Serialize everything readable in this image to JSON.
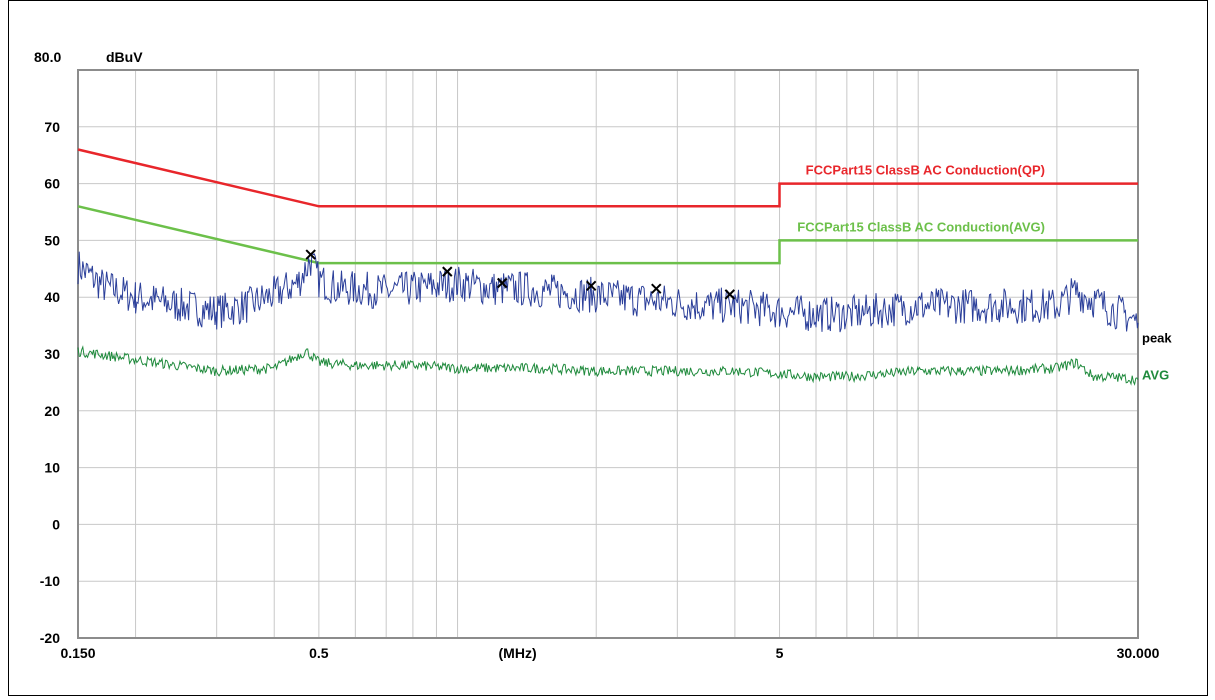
{
  "chart_data": {
    "type": "line",
    "title": "",
    "y_top_label": "80.0",
    "ylabel": "dBuV",
    "xlabel": "(MHz)",
    "x_scale": "log",
    "xlim": [
      0.15,
      30
    ],
    "ylim": [
      -20,
      80
    ],
    "x_tick_labels": [
      {
        "value": 0.15,
        "label": "0.150"
      },
      {
        "value": 0.5,
        "label": "0.5"
      },
      {
        "value": 1.35,
        "label": "(MHz)"
      },
      {
        "value": 5,
        "label": "5"
      },
      {
        "value": 30,
        "label": "30.000"
      }
    ],
    "y_ticks": [
      70,
      60,
      50,
      40,
      30,
      20,
      10,
      0,
      -10,
      -20
    ],
    "series": [
      {
        "name": "FCCPart15 ClassB AC Conduction(QP)",
        "color": "#e8262b",
        "x": [
          0.15,
          0.5,
          0.5,
          5,
          5,
          30
        ],
        "y": [
          66,
          56,
          56,
          56,
          60,
          60
        ]
      },
      {
        "name": "FCCPart15 ClassB AC Conduction(AVG)",
        "color": "#6cc04a",
        "x": [
          0.15,
          0.5,
          0.5,
          5,
          5,
          30
        ],
        "y": [
          56,
          46,
          46,
          46,
          50,
          50
        ]
      },
      {
        "name": "peak",
        "color": "#2b3f9a",
        "x": [
          0.15,
          0.17,
          0.2,
          0.25,
          0.3,
          0.35,
          0.4,
          0.45,
          0.48,
          0.5,
          0.55,
          0.6,
          0.7,
          0.8,
          0.9,
          1.0,
          1.2,
          1.4,
          1.6,
          1.9,
          2.2,
          2.6,
          3.0,
          3.5,
          4.0,
          4.5,
          5.0,
          6.0,
          7.0,
          8.0,
          10.0,
          12.0,
          15.0,
          18.0,
          20.0,
          22.0,
          24.0,
          26.0,
          28.0,
          30.0
        ],
        "y": [
          45.5,
          42,
          40,
          38.5,
          37.5,
          38.5,
          40.5,
          42.5,
          46.5,
          43,
          41.5,
          41.5,
          41,
          41.5,
          42,
          42.5,
          41.5,
          41.5,
          41,
          40.5,
          40,
          39.5,
          39,
          38.5,
          38.5,
          38,
          37.5,
          37,
          37,
          37.5,
          38.5,
          38.5,
          38.5,
          38.5,
          38.5,
          41,
          39.5,
          38,
          37,
          35.5
        ]
      },
      {
        "name": "AVG",
        "color": "#1f8a3c",
        "x": [
          0.15,
          0.2,
          0.3,
          0.4,
          0.47,
          0.5,
          0.6,
          0.8,
          1.0,
          1.5,
          2.0,
          3.0,
          4.0,
          5.0,
          6.0,
          7.0,
          10.0,
          15.0,
          20.0,
          22.0,
          24.0,
          26.0,
          30.0
        ],
        "y": [
          30.5,
          29,
          27,
          27.5,
          30.5,
          28.5,
          28,
          28,
          27.5,
          27.5,
          27,
          27,
          27,
          26.5,
          26,
          26,
          27,
          27,
          27.5,
          28.5,
          26,
          26,
          25.5
        ]
      }
    ],
    "markers": {
      "symbol": "x",
      "x": [
        0.48,
        0.95,
        1.25,
        1.95,
        2.7,
        3.9
      ],
      "y": [
        47.5,
        44.5,
        42.5,
        42,
        41.5,
        40.5
      ]
    },
    "series_end_labels": [
      "peak",
      "AVG"
    ],
    "grid": true
  }
}
